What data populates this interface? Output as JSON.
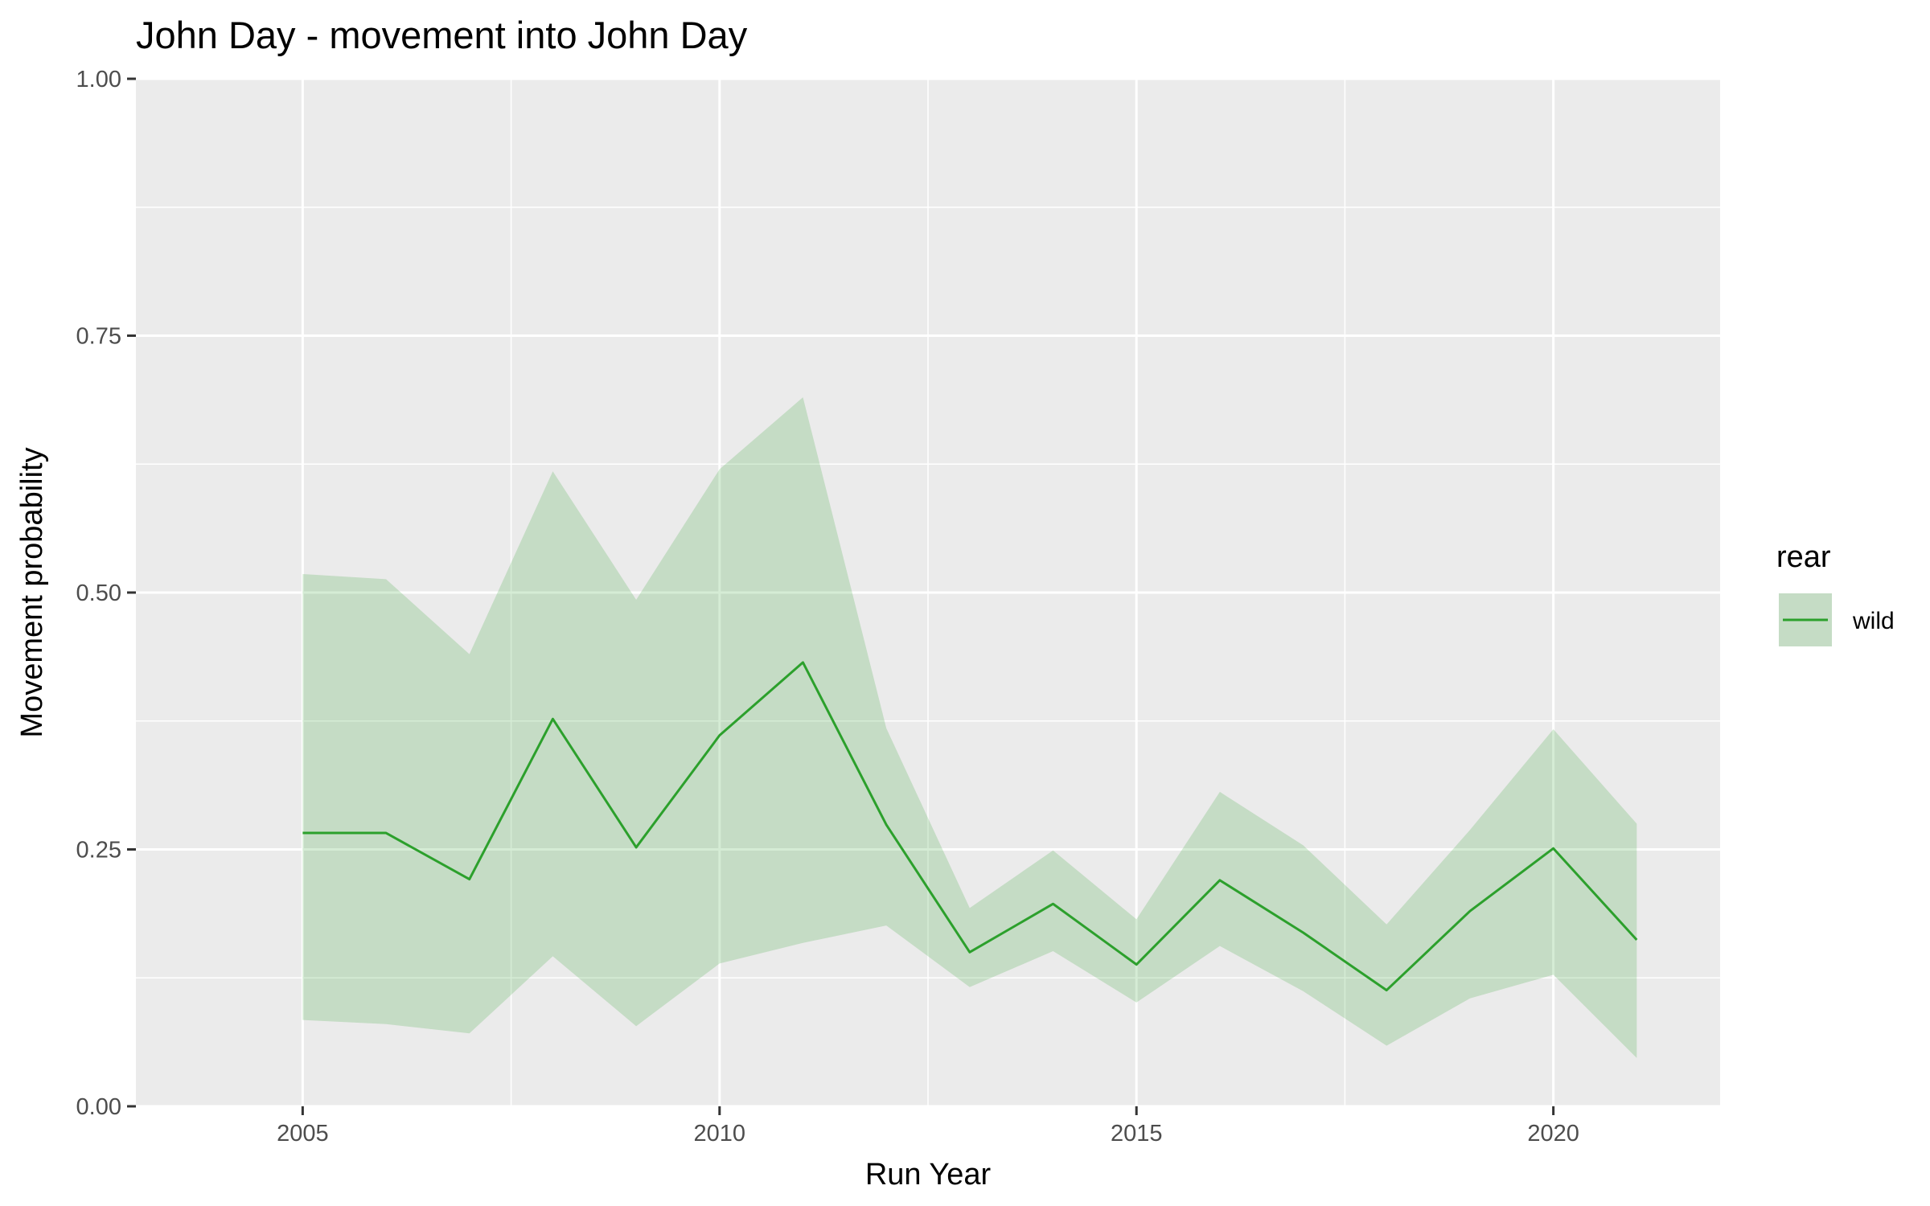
{
  "chart_data": {
    "type": "line",
    "title": "John Day - movement into John Day",
    "xlabel": "Run Year",
    "ylabel": "Movement probability",
    "xlim": [
      2003,
      2022
    ],
    "ylim": [
      0,
      1
    ],
    "x_ticks": [
      2005,
      2010,
      2015,
      2020
    ],
    "x_tick_labels": [
      "2005",
      "2010",
      "2015",
      "2020"
    ],
    "y_ticks": [
      0,
      0.25,
      0.5,
      0.75,
      1
    ],
    "y_tick_labels": [
      "0.00",
      "0.25",
      "0.50",
      "0.75",
      "1.00"
    ],
    "grid": true,
    "legend_position": "right",
    "legend_title": "rear",
    "series": [
      {
        "name": "wild",
        "color": "#2ca02c",
        "ribbon_color": "#2ca02c",
        "x": [
          2005,
          2006,
          2007,
          2008,
          2009,
          2010,
          2011,
          2012,
          2013,
          2014,
          2015,
          2016,
          2017,
          2018,
          2019,
          2020,
          2021
        ],
        "values": [
          0.266,
          0.266,
          0.221,
          0.377,
          0.252,
          0.361,
          0.432,
          0.274,
          0.15,
          0.197,
          0.138,
          0.22,
          0.169,
          0.113,
          0.19,
          0.251,
          0.162
        ],
        "lower": [
          0.084,
          0.08,
          0.071,
          0.146,
          0.078,
          0.139,
          0.159,
          0.176,
          0.116,
          0.151,
          0.101,
          0.156,
          0.112,
          0.059,
          0.105,
          0.128,
          0.047
        ],
        "upper": [
          0.518,
          0.513,
          0.44,
          0.618,
          0.493,
          0.62,
          0.69,
          0.368,
          0.193,
          0.249,
          0.182,
          0.306,
          0.254,
          0.177,
          0.269,
          0.367,
          0.275
        ]
      }
    ]
  }
}
